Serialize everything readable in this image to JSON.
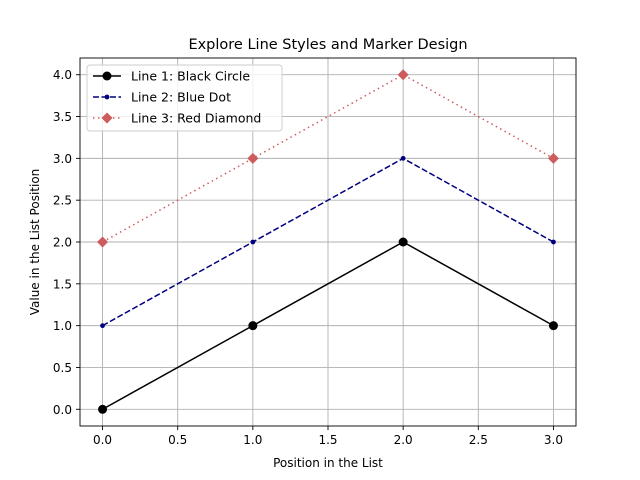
{
  "chart_data": {
    "type": "line",
    "title": "Explore Line Styles and Marker Design",
    "xlabel": "Position in the List",
    "ylabel": "Value in the List Position",
    "x": [
      0,
      1,
      2,
      3
    ],
    "xlim": [
      -0.15,
      3.15
    ],
    "ylim": [
      -0.2,
      4.2
    ],
    "xticks": [
      0.0,
      0.5,
      1.0,
      1.5,
      2.0,
      2.5,
      3.0
    ],
    "yticks": [
      0.0,
      0.5,
      1.0,
      1.5,
      2.0,
      2.5,
      3.0,
      3.5,
      4.0
    ],
    "xtick_labels": [
      "0.0",
      "0.5",
      "1.0",
      "1.5",
      "2.0",
      "2.5",
      "3.0"
    ],
    "ytick_labels": [
      "0.0",
      "0.5",
      "1.0",
      "1.5",
      "2.0",
      "2.5",
      "3.0",
      "3.5",
      "4.0"
    ],
    "grid": true,
    "legend_position": "top-left",
    "series": [
      {
        "name": "Line 1: Black Circle",
        "values": [
          0,
          1,
          2,
          1
        ],
        "color": "#000000",
        "linestyle": "solid",
        "marker": "circle"
      },
      {
        "name": "Line 2: Blue Dot",
        "values": [
          1,
          2,
          3,
          2
        ],
        "color": "#00007f",
        "linestyle": "dashed",
        "marker": "dot"
      },
      {
        "name": "Line 3: Red Diamond",
        "values": [
          2,
          3,
          4,
          3
        ],
        "color": "#cd5c5c",
        "linestyle": "dotted",
        "marker": "diamond"
      }
    ]
  }
}
